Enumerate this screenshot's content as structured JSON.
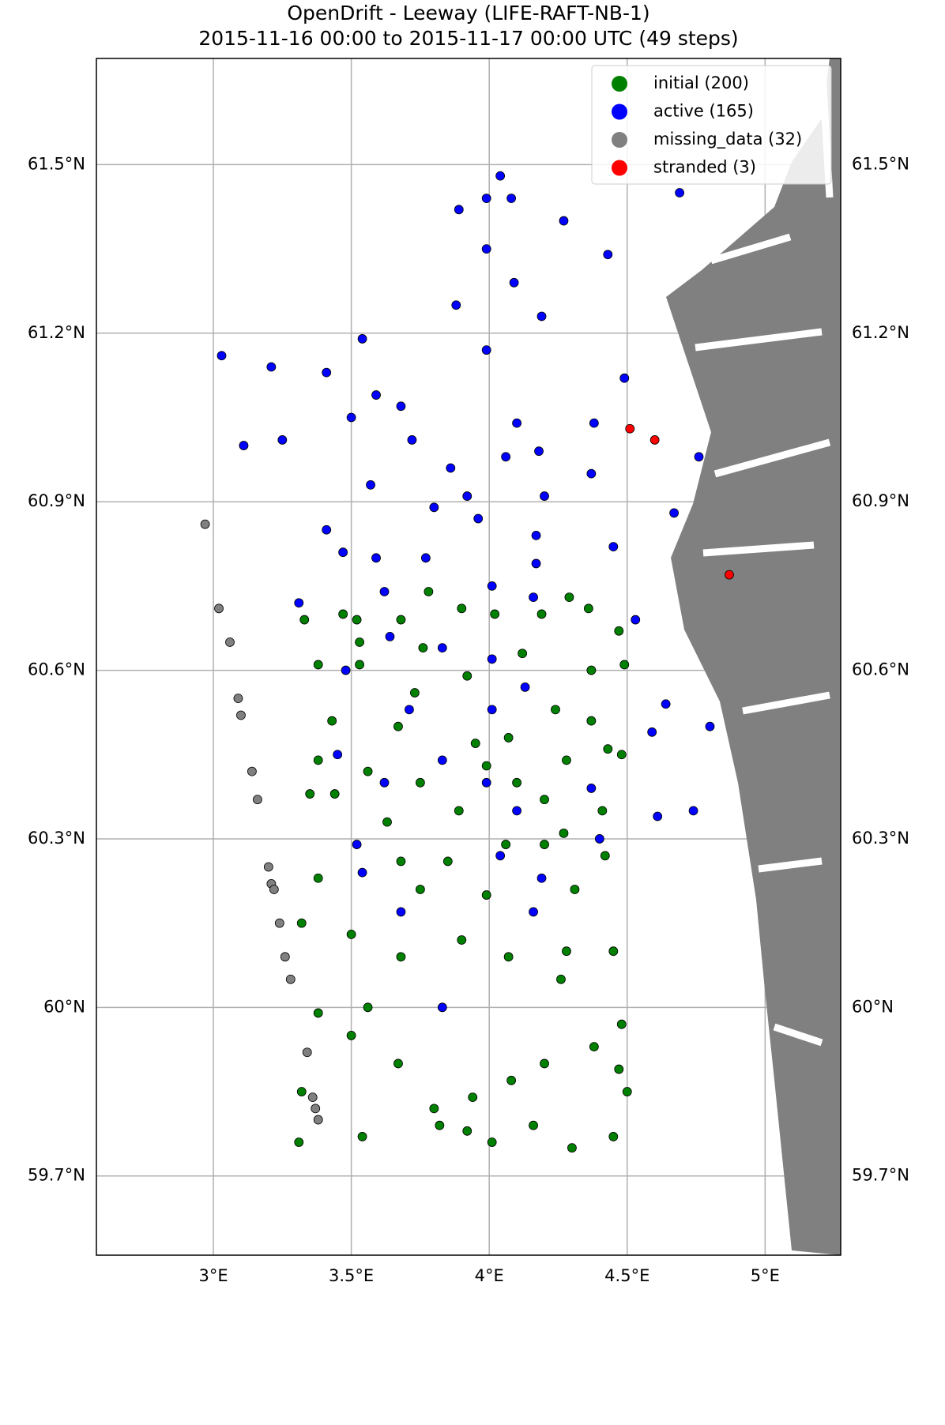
{
  "chart_data": {
    "type": "scatter",
    "title": "OpenDrift - Leeway (LIFE-RAFT-NB-1)",
    "subtitle": "2015-11-16 00:00 to 2015-11-17 00:00 UTC (49 steps)",
    "xlim": [
      2.576,
      5.274
    ],
    "ylim": [
      59.559,
      61.689
    ],
    "xticks": [
      {
        "value": 3,
        "label": "3°E"
      },
      {
        "value": 3.5,
        "label": "3.5°E"
      },
      {
        "value": 4,
        "label": "4°E"
      },
      {
        "value": 4.5,
        "label": "4.5°E"
      },
      {
        "value": 5,
        "label": "5°E"
      }
    ],
    "yticks": [
      {
        "value": 59.7,
        "label": "59.7°N"
      },
      {
        "value": 60,
        "label": "60°N"
      },
      {
        "value": 60.3,
        "label": "60.3°N"
      },
      {
        "value": 60.6,
        "label": "60.6°N"
      },
      {
        "value": 60.9,
        "label": "60.9°N"
      },
      {
        "value": 61.2,
        "label": "61.2°N"
      },
      {
        "value": 61.5,
        "label": "61.5°N"
      }
    ],
    "grid": true,
    "legend": "upper right",
    "series": [
      {
        "name": "initial (200)",
        "color": "#008000",
        "x": [
          3.31,
          3.32,
          3.54,
          3.82,
          3.92,
          4.01,
          4.16,
          4.3,
          4.45,
          4.5,
          4.47,
          4.38,
          4.2,
          4.08,
          3.94,
          3.8,
          3.67,
          3.5,
          3.38,
          3.56,
          3.68,
          3.9,
          4.07,
          4.26,
          4.48,
          4.45,
          4.28,
          4.31,
          4.42,
          4.2,
          3.99,
          3.75,
          3.5,
          3.32,
          3.38,
          3.68,
          3.85,
          4.06,
          4.27,
          4.41,
          4.2,
          4.1,
          3.89,
          3.63,
          3.44,
          3.35,
          3.38,
          3.56,
          3.75,
          3.99,
          4.28,
          4.43,
          4.48,
          4.37,
          4.24,
          4.07,
          3.95,
          3.67,
          3.43,
          3.38,
          3.53,
          3.73,
          3.92,
          4.12,
          4.37,
          4.49,
          4.47,
          4.36,
          4.19,
          4.02,
          3.68,
          3.52,
          3.33,
          3.47,
          3.78,
          4.29,
          3.9,
          3.76,
          3.53
        ],
        "values": [
          59.76,
          59.85,
          59.77,
          59.79,
          59.78,
          59.76,
          59.79,
          59.75,
          59.77,
          59.85,
          59.89,
          59.93,
          59.9,
          59.87,
          59.84,
          59.82,
          59.9,
          59.95,
          59.99,
          60.0,
          60.09,
          60.12,
          60.09,
          60.05,
          59.97,
          60.1,
          60.1,
          60.21,
          60.27,
          60.29,
          60.2,
          60.21,
          60.13,
          60.15,
          60.23,
          60.26,
          60.26,
          60.29,
          60.31,
          60.35,
          60.37,
          60.4,
          60.35,
          60.33,
          60.38,
          60.38,
          60.44,
          60.42,
          60.4,
          60.43,
          60.44,
          60.46,
          60.45,
          60.51,
          60.53,
          60.48,
          60.47,
          60.5,
          60.51,
          60.61,
          60.61,
          60.56,
          60.59,
          60.63,
          60.6,
          60.61,
          60.67,
          60.71,
          60.7,
          60.7,
          60.69,
          60.69,
          60.69,
          60.7,
          60.74,
          60.73,
          60.71,
          60.64,
          60.65
        ]
      },
      {
        "name": "active (165)",
        "color": "#0000ff",
        "x": [
          4.04,
          4.69,
          3.89,
          3.99,
          4.08,
          4.27,
          3.99,
          4.43,
          4.09,
          3.88,
          4.19,
          3.54,
          3.03,
          3.21,
          3.41,
          3.99,
          4.49,
          3.59,
          3.68,
          3.5,
          3.11,
          3.25,
          4.1,
          4.38,
          3.72,
          3.86,
          4.06,
          4.18,
          4.37,
          3.57,
          3.92,
          4.2,
          4.76,
          4.67,
          3.41,
          3.8,
          3.96,
          4.17,
          3.47,
          3.59,
          3.77,
          4.17,
          4.45,
          3.31,
          3.62,
          4.01,
          4.16,
          4.53,
          3.64,
          3.83,
          4.01,
          3.48,
          3.71,
          4.01,
          4.13,
          4.64,
          4.8,
          4.59,
          3.45,
          3.83,
          4.37,
          4.61,
          4.74,
          3.62,
          3.99,
          4.1,
          3.52,
          4.04,
          4.19,
          3.54,
          3.83,
          4.4,
          3.68,
          4.16
        ],
        "values": [
          61.48,
          61.45,
          61.42,
          61.44,
          61.44,
          61.4,
          61.35,
          61.34,
          61.29,
          61.25,
          61.23,
          61.19,
          61.16,
          61.14,
          61.13,
          61.17,
          61.12,
          61.09,
          61.07,
          61.05,
          61.0,
          61.01,
          61.04,
          61.04,
          61.01,
          60.96,
          60.98,
          60.99,
          60.95,
          60.93,
          60.91,
          60.91,
          60.98,
          60.88,
          60.85,
          60.89,
          60.87,
          60.84,
          60.81,
          60.8,
          60.8,
          60.79,
          60.82,
          60.72,
          60.74,
          60.75,
          60.73,
          60.69,
          60.66,
          60.64,
          60.62,
          60.6,
          60.53,
          60.53,
          60.57,
          60.54,
          60.5,
          60.49,
          60.45,
          60.44,
          60.39,
          60.34,
          60.35,
          60.4,
          60.4,
          60.35,
          60.29,
          60.27,
          60.23,
          60.24,
          60.0,
          60.3,
          60.17,
          60.17
        ]
      },
      {
        "name": "missing_data (32)",
        "color": "#808080",
        "x": [
          2.97,
          3.02,
          3.06,
          3.09,
          3.1,
          3.14,
          3.16,
          3.2,
          3.21,
          3.22,
          3.24,
          3.26,
          3.28,
          3.34,
          3.36,
          3.37,
          3.38
        ],
        "values": [
          60.86,
          60.71,
          60.65,
          60.55,
          60.52,
          60.42,
          60.37,
          60.25,
          60.22,
          60.21,
          60.15,
          60.09,
          60.05,
          59.92,
          59.84,
          59.82,
          59.8
        ]
      },
      {
        "name": "stranded (3)",
        "color": "#ff0000",
        "x": [
          4.51,
          4.6,
          4.87
        ],
        "values": [
          61.03,
          61.01,
          60.77
        ]
      }
    ]
  }
}
